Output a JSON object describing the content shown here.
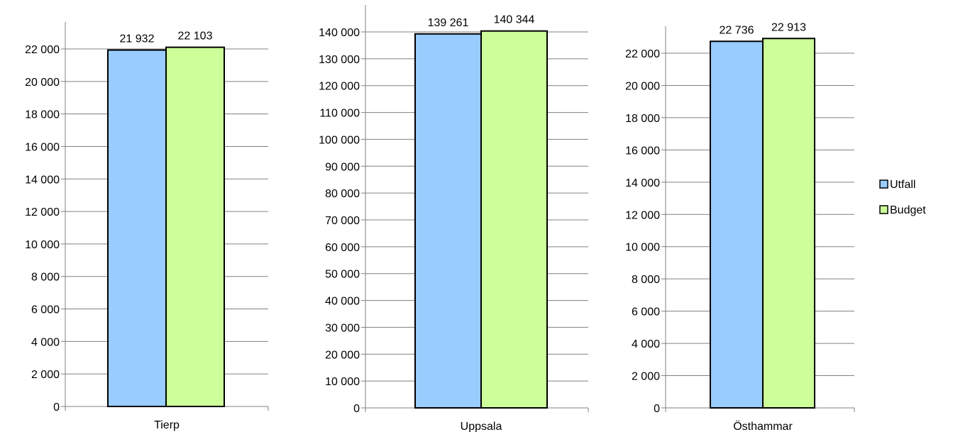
{
  "chart_data": [
    {
      "type": "bar",
      "categories": [
        "Tierp"
      ],
      "series": [
        {
          "name": "Utfall",
          "values": [
            21932
          ]
        },
        {
          "name": "Budget",
          "values": [
            22103
          ]
        }
      ],
      "data_labels": [
        "21 932",
        "22 103"
      ],
      "ylim": [
        0,
        22000
      ],
      "ystep": 2000,
      "yticks": [
        "0",
        "2 000",
        "4 000",
        "6 000",
        "8 000",
        "10 000",
        "12 000",
        "14 000",
        "16 000",
        "18 000",
        "20 000",
        "22 000"
      ],
      "grid": true
    },
    {
      "type": "bar",
      "categories": [
        "Uppsala"
      ],
      "series": [
        {
          "name": "Utfall",
          "values": [
            139261
          ]
        },
        {
          "name": "Budget",
          "values": [
            140344
          ]
        }
      ],
      "data_labels": [
        "139 261",
        "140 344"
      ],
      "ylim": [
        0,
        140000
      ],
      "ystep": 10000,
      "yticks": [
        "0",
        "10 000",
        "20 000",
        "30 000",
        "40 000",
        "50 000",
        "60 000",
        "70 000",
        "80 000",
        "90 000",
        "100 000",
        "110 000",
        "120 000",
        "130 000",
        "140 000"
      ],
      "grid": true
    },
    {
      "type": "bar",
      "categories": [
        "Östhammar"
      ],
      "series": [
        {
          "name": "Utfall",
          "values": [
            22736
          ]
        },
        {
          "name": "Budget",
          "values": [
            22913
          ]
        }
      ],
      "data_labels": [
        "22 736",
        "22 913"
      ],
      "ylim": [
        0,
        22000
      ],
      "ystep": 2000,
      "yticks": [
        "0",
        "2 000",
        "4 000",
        "6 000",
        "8 000",
        "10 000",
        "12 000",
        "14 000",
        "16 000",
        "18 000",
        "20 000",
        "22 000"
      ],
      "grid": true
    }
  ],
  "legend": {
    "placement": "right",
    "items": [
      {
        "label": "Utfall",
        "color": "#99ccff"
      },
      {
        "label": "Budget",
        "color": "#ccff99"
      }
    ]
  },
  "colors": {
    "utfall": "#99ccff",
    "budget": "#ccff99",
    "grid": "#808080",
    "border": "#000000"
  }
}
